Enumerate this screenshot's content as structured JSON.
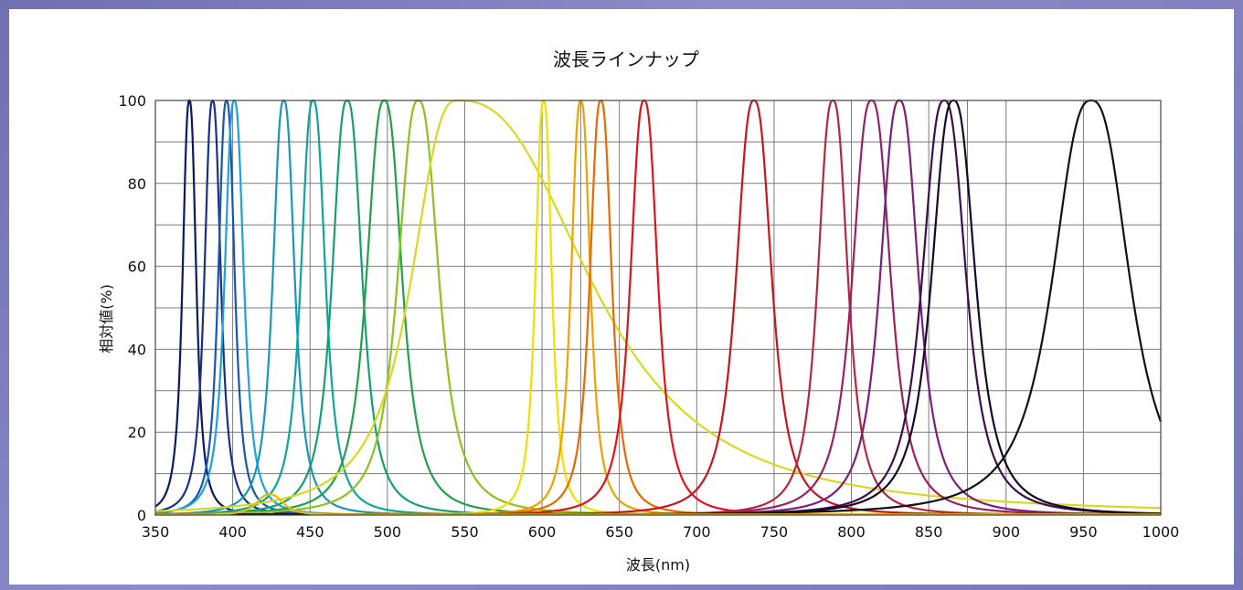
{
  "chart_data": {
    "type": "line",
    "title": "波長ラインナップ",
    "xlabel": "波長(nm)",
    "ylabel": "相対値(%)",
    "xlim": [
      350,
      1000
    ],
    "ylim": [
      0,
      100
    ],
    "x_ticks": [
      350,
      400,
      450,
      500,
      550,
      600,
      650,
      700,
      750,
      800,
      850,
      900,
      950,
      1000
    ],
    "y_ticks": [
      0,
      20,
      40,
      60,
      80,
      100
    ],
    "minor_x_ticks": [
      625,
      875
    ],
    "minor_y_ticks": [
      10,
      30,
      50,
      70,
      90
    ],
    "grid": true,
    "legend": "none",
    "series": [
      {
        "peak": 372,
        "width": 5,
        "color": "#0a1a5c"
      },
      {
        "peak": 387,
        "width": 6,
        "color": "#1c2f86"
      },
      {
        "peak": 396,
        "width": 6,
        "color": "#1a56b0"
      },
      {
        "peak": 401,
        "width": 7,
        "color": "#1fa0dc"
      },
      {
        "peak": 433,
        "width": 8,
        "color": "#1a96b8"
      },
      {
        "peak": 452,
        "width": 9,
        "color": "#0fa59a"
      },
      {
        "peak": 474,
        "width": 11,
        "color": "#14a070"
      },
      {
        "peak": 498,
        "width": 13,
        "color": "#1fa04a"
      },
      {
        "peak": 520,
        "width": 15,
        "color": "#8cc21f"
      },
      {
        "peak": 545,
        "width": 60,
        "color": "#d8d820",
        "asym": true
      },
      {
        "peak": 601,
        "width": 6,
        "color": "#f0e000"
      },
      {
        "peak": 625,
        "width": 7,
        "color": "#f0a000"
      },
      {
        "peak": 638,
        "width": 8,
        "color": "#e66a00"
      },
      {
        "peak": 666,
        "width": 10,
        "color": "#e0121c"
      },
      {
        "peak": 737,
        "width": 13,
        "color": "#c8141e"
      },
      {
        "peak": 788,
        "width": 11,
        "color": "#b4283c"
      },
      {
        "peak": 813,
        "width": 14,
        "color": "#9a2060"
      },
      {
        "peak": 831,
        "width": 14,
        "color": "#7a1f7a"
      },
      {
        "peak": 860,
        "width": 16,
        "color": "#3c0f4c"
      },
      {
        "peak": 866,
        "width": 16,
        "color": "#15082a"
      },
      {
        "peak": 955,
        "width": 28,
        "color": "#111111"
      },
      {
        "peak": 424,
        "width": 10,
        "amplitude": 5,
        "color": "#e0c000"
      }
    ]
  }
}
